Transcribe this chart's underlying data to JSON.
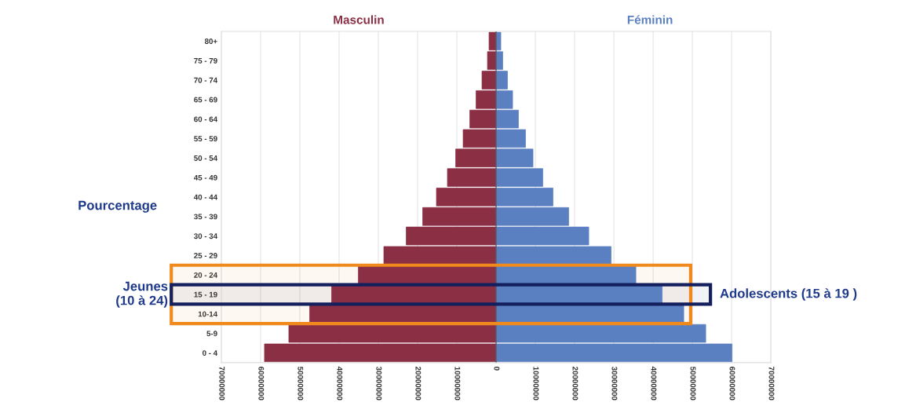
{
  "chart_data": {
    "type": "bar",
    "orientation": "horizontal",
    "ylabel": "Pourcentage",
    "categories": [
      "80+",
      "75 - 79",
      "70 - 74",
      "65 - 69",
      "60 - 64",
      "55 - 59",
      "50 - 54",
      "45 - 49",
      "40 - 44",
      "35 - 39",
      "30 - 34",
      "25 - 29",
      "20 - 24",
      "15 - 19",
      "10-14",
      "5-9",
      "0 - 4"
    ],
    "series": [
      {
        "name": "Masculin",
        "color": "#8b2f45",
        "values": [
          -1800000,
          -2200000,
          -3600000,
          -5100000,
          -6700000,
          -8400000,
          -10300000,
          -12400000,
          -15200000,
          -18700000,
          -22900000,
          -28600000,
          -35100000,
          -41900000,
          -47500000,
          -52800000,
          -59000000
        ]
      },
      {
        "name": "Féminin",
        "color": "#5b80c2",
        "values": [
          1200000,
          1700000,
          2900000,
          4200000,
          5700000,
          7500000,
          9400000,
          11900000,
          14500000,
          18500000,
          23600000,
          29300000,
          35600000,
          42300000,
          47800000,
          53400000,
          60100000
        ]
      }
    ],
    "xlim": [
      -70000000,
      70000000
    ],
    "xticks": [
      {
        "value": -70000000,
        "label": "70000000"
      },
      {
        "value": -60000000,
        "label": "60000000"
      },
      {
        "value": -50000000,
        "label": "50000000"
      },
      {
        "value": -40000000,
        "label": "40000000"
      },
      {
        "value": -30000000,
        "label": "30000000"
      },
      {
        "value": -20000000,
        "label": "20000000"
      },
      {
        "value": -10000000,
        "label": "10000000"
      },
      0,
      10000000,
      20000000,
      30000000,
      40000000,
      50000000,
      60000000,
      70000000
    ],
    "grid": "x",
    "legend": false,
    "stacked": true,
    "bands": [
      {
        "axis": "y",
        "from": "10-14",
        "to": "20 - 24",
        "label": "Jeunes\n(10 à 24)",
        "color": "#f08a1c"
      },
      {
        "axis": "y",
        "from": "15 - 19",
        "to": "15 - 19",
        "label": "Adolescents (15 à 19 )",
        "color": "#14205e"
      }
    ]
  }
}
